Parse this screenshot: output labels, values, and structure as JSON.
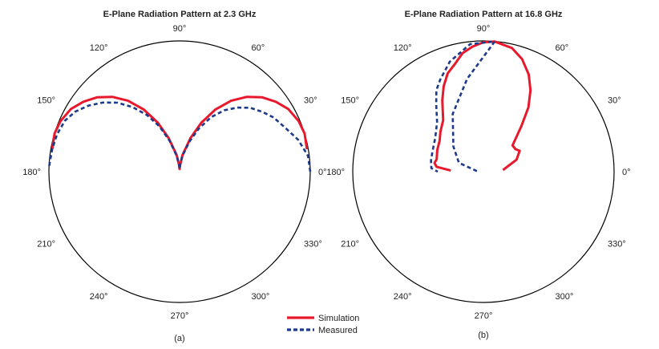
{
  "chart_data": [
    {
      "type": "polar-line",
      "title": "E-Plane Radiation Pattern at 2.3 GHz",
      "caption": "(a)",
      "angle_labels": [
        {
          "deg": 0,
          "text": "0°"
        },
        {
          "deg": 30,
          "text": "30°"
        },
        {
          "deg": 60,
          "text": "60°"
        },
        {
          "deg": 90,
          "text": "90°"
        },
        {
          "deg": 120,
          "text": "120°"
        },
        {
          "deg": 150,
          "text": "150°"
        },
        {
          "deg": 180,
          "text": "180°"
        },
        {
          "deg": 210,
          "text": "210°"
        },
        {
          "deg": 240,
          "text": "240°"
        },
        {
          "deg": 270,
          "text": "270°"
        },
        {
          "deg": 300,
          "text": "300°"
        },
        {
          "deg": 330,
          "text": "330°"
        }
      ],
      "r_max": 1.0,
      "series": [
        {
          "name": "Simulation",
          "style": "solid",
          "points": [
            [
              10,
              0.99
            ],
            [
              17,
              1.0
            ],
            [
              23,
              0.99
            ],
            [
              30,
              0.96
            ],
            [
              36,
              0.91
            ],
            [
              42,
              0.85
            ],
            [
              48,
              0.77
            ],
            [
              54,
              0.67
            ],
            [
              60,
              0.55
            ],
            [
              66,
              0.41
            ],
            [
              72,
              0.27
            ],
            [
              80,
              0.13
            ],
            [
              86,
              0.05
            ],
            [
              90,
              0.02
            ],
            [
              94,
              0.05
            ],
            [
              100,
              0.13
            ],
            [
              108,
              0.27
            ],
            [
              114,
              0.41
            ],
            [
              120,
              0.55
            ],
            [
              126,
              0.67
            ],
            [
              132,
              0.77
            ],
            [
              138,
              0.85
            ],
            [
              144,
              0.91
            ],
            [
              150,
              0.96
            ],
            [
              157,
              0.99
            ],
            [
              163,
              1.0
            ],
            [
              170,
              0.99
            ]
          ]
        },
        {
          "name": "Measured",
          "style": "dashed",
          "points": [
            [
              0,
              1.0
            ],
            [
              7,
              0.99
            ],
            [
              15,
              0.94
            ],
            [
              22,
              0.88
            ],
            [
              30,
              0.83
            ],
            [
              36,
              0.78
            ],
            [
              42,
              0.73
            ],
            [
              48,
              0.66
            ],
            [
              54,
              0.58
            ],
            [
              60,
              0.48
            ],
            [
              66,
              0.36
            ],
            [
              72,
              0.24
            ],
            [
              80,
              0.12
            ],
            [
              86,
              0.05
            ],
            [
              90,
              0.02
            ],
            [
              94,
              0.05
            ],
            [
              100,
              0.12
            ],
            [
              108,
              0.25
            ],
            [
              114,
              0.38
            ],
            [
              120,
              0.5
            ],
            [
              126,
              0.61
            ],
            [
              132,
              0.71
            ],
            [
              138,
              0.79
            ],
            [
              144,
              0.86
            ],
            [
              150,
              0.92
            ],
            [
              156,
              0.96
            ],
            [
              163,
              0.98
            ],
            [
              170,
              0.99
            ],
            [
              178,
              1.0
            ]
          ]
        }
      ]
    },
    {
      "type": "polar-line",
      "title": "E-Plane Radiation Pattern at 16.8 GHz",
      "caption": "(b)",
      "angle_labels": [
        {
          "deg": 0,
          "text": "0°"
        },
        {
          "deg": 30,
          "text": "30°"
        },
        {
          "deg": 60,
          "text": "60°"
        },
        {
          "deg": 90,
          "text": "90°"
        },
        {
          "deg": 120,
          "text": "120°"
        },
        {
          "deg": 150,
          "text": "150°"
        },
        {
          "deg": 180,
          "text": "180°"
        },
        {
          "deg": 210,
          "text": "210°"
        },
        {
          "deg": 240,
          "text": "240°"
        },
        {
          "deg": 270,
          "text": "270°"
        },
        {
          "deg": 300,
          "text": "300°"
        },
        {
          "deg": 330,
          "text": "330°"
        }
      ],
      "r_max": 1.0,
      "series": [
        {
          "name": "Simulation",
          "style": "solid",
          "points": [
            [
              5,
              0.15
            ],
            [
              20,
              0.27
            ],
            [
              30,
              0.32
            ],
            [
              35,
              0.3
            ],
            [
              42,
              0.3
            ],
            [
              50,
              0.45
            ],
            [
              55,
              0.6
            ],
            [
              60,
              0.72
            ],
            [
              65,
              0.82
            ],
            [
              71,
              0.91
            ],
            [
              77,
              0.97
            ],
            [
              85,
              0.999
            ],
            [
              90,
              0.99
            ],
            [
              95,
              0.96
            ],
            [
              100,
              0.92
            ],
            [
              105,
              0.85
            ],
            [
              110,
              0.8
            ],
            [
              115,
              0.72
            ],
            [
              120,
              0.63
            ],
            [
              128,
              0.5
            ],
            [
              137,
              0.45
            ],
            [
              145,
              0.41
            ],
            [
              155,
              0.39
            ],
            [
              165,
              0.37
            ],
            [
              170,
              0.38
            ],
            [
              174,
              0.36
            ],
            [
              178,
              0.25
            ]
          ]
        },
        {
          "name": "Measured",
          "style": "dashed",
          "points": [
            [
              175,
              0.05
            ],
            [
              160,
              0.2
            ],
            [
              140,
              0.3
            ],
            [
              118,
              0.5
            ],
            [
              100,
              0.72
            ],
            [
              85,
              1.0
            ],
            [
              96,
              0.98
            ],
            [
              107,
              0.88
            ],
            [
              115,
              0.78
            ],
            [
              120,
              0.72
            ],
            [
              125,
              0.63
            ],
            [
              133,
              0.52
            ],
            [
              145,
              0.45
            ],
            [
              158,
              0.42
            ],
            [
              168,
              0.41
            ],
            [
              176,
              0.4
            ],
            [
              180,
              0.35
            ]
          ]
        }
      ]
    }
  ],
  "legend": {
    "items": [
      {
        "label": "Simulation",
        "color": "#e8192c",
        "style": "solid"
      },
      {
        "label": "Measured",
        "color": "#1e3a8a",
        "style": "dashed"
      }
    ]
  },
  "colors": {
    "simulation": "#e8192c",
    "measured": "#1e3a8a",
    "axis": "#000000"
  }
}
